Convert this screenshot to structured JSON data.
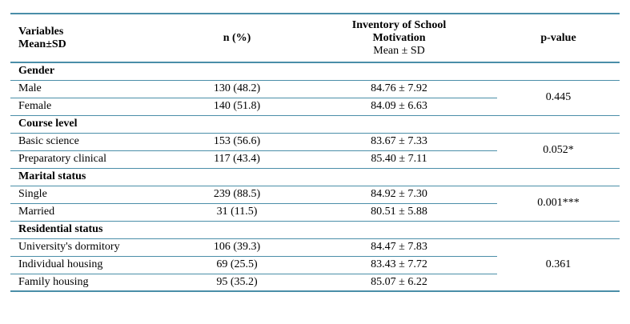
{
  "header": {
    "col1_line1": "Variables",
    "col1_line2": "Mean±SD",
    "col2": "n (%)",
    "col3_line1": "Inventory of School",
    "col3_line2": "Motivation",
    "col3_line3": "Mean ± SD",
    "col4": "p-value"
  },
  "groups": [
    {
      "title": "Gender",
      "p_value": "0.445",
      "rows": [
        {
          "label": "Male",
          "n": "130 (48.2)",
          "mean_sd": "84.76 ± 7.92"
        },
        {
          "label": "Female",
          "n": "140 (51.8)",
          "mean_sd": "84.09 ± 6.63"
        }
      ]
    },
    {
      "title": "Course level",
      "p_value": "0.052*",
      "rows": [
        {
          "label": "Basic science",
          "n": "153 (56.6)",
          "mean_sd": "83.67 ± 7.33"
        },
        {
          "label": "Preparatory clinical",
          "n": "117 (43.4)",
          "mean_sd": "85.40 ± 7.11"
        }
      ]
    },
    {
      "title": "Marital status",
      "p_value": "0.001***",
      "rows": [
        {
          "label": "Single",
          "n": "239 (88.5)",
          "mean_sd": "84.92 ± 7.30"
        },
        {
          "label": "Married",
          "n": "31 (11.5)",
          "mean_sd": "80.51 ± 5.88"
        }
      ]
    },
    {
      "title": "Residential status",
      "p_value": "0.361",
      "rows": [
        {
          "label": "University's dormitory",
          "n": "106 (39.3)",
          "mean_sd": "84.47 ± 7.83"
        },
        {
          "label": "Individual housing",
          "n": "69 (25.5)",
          "mean_sd": "83.43 ± 7.72"
        },
        {
          "label": "Family housing",
          "n": "95 (35.2)",
          "mean_sd": "85.07 ± 6.22"
        }
      ]
    }
  ],
  "colors": {
    "rule": "#4a8ea8"
  }
}
